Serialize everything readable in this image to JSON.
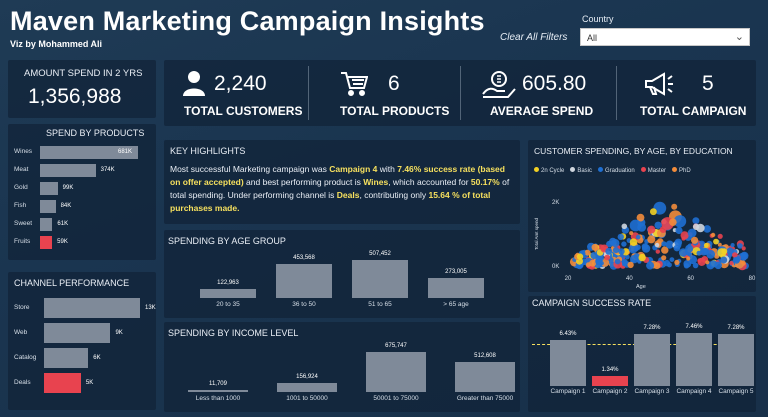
{
  "header": {
    "title": "Maven Marketing Campaign Insights",
    "byline": "Viz by Mohammed Ali",
    "clear_filters": "Clear All Filters",
    "country_label": "Country",
    "country_value": "All"
  },
  "amount": {
    "label": "AMOUNT SPEND IN 2 YRS",
    "value": "1,356,988"
  },
  "kpis": [
    {
      "value": "2,240",
      "label": "TOTAL CUSTOMERS",
      "icon": "person-icon"
    },
    {
      "value": "6",
      "label": "TOTAL PRODUCTS",
      "icon": "cart-icon"
    },
    {
      "value": "605.80",
      "label": "AVERAGE SPEND",
      "icon": "money-hand-icon"
    },
    {
      "value": "5",
      "label": "TOTAL CAMPAIGN",
      "icon": "megaphone-icon"
    }
  ],
  "spend_by_products": {
    "title": "SPEND BY PRODUCTS",
    "items": [
      {
        "name": "Wines",
        "label": "681K",
        "value": 681
      },
      {
        "name": "Meat",
        "label": "374K",
        "value": 374
      },
      {
        "name": "Gold",
        "label": "99K",
        "value": 99
      },
      {
        "name": "Fish",
        "label": "84K",
        "value": 84
      },
      {
        "name": "Sweet",
        "label": "61K",
        "value": 61
      },
      {
        "name": "Fruits",
        "label": "59K",
        "value": 59
      }
    ]
  },
  "channel_performance": {
    "title": "CHANNEL PERFORMANCE",
    "items": [
      {
        "name": "Store",
        "label": "13K",
        "value": 13
      },
      {
        "name": "Web",
        "label": "9K",
        "value": 9
      },
      {
        "name": "Catalog",
        "label": "6K",
        "value": 6
      },
      {
        "name": "Deals",
        "label": "5K",
        "value": 5
      }
    ]
  },
  "highlights": {
    "title": "KEY HIGHLIGHTS",
    "t1": "Most successful Marketing campaign was ",
    "b1": "Campaign 4",
    "t2": " with ",
    "b2": "7.46% success rate (based on offer accepted)",
    "t3": " and best performing product is ",
    "b3": "Wines",
    "t4": ", which accounted for ",
    "b4": "50.17%",
    "t5": " of total spending. Under performing channel is ",
    "b5": "Deals",
    "t6": ", contributing only ",
    "b6": "15.64 % of total purchases made."
  },
  "spending_by_age": {
    "title": "SPENDING BY AGE GROUP",
    "items": [
      {
        "group": "20 to 35",
        "label": "122,963",
        "value": 122963
      },
      {
        "group": "36 to 50",
        "label": "453,568",
        "value": 453568
      },
      {
        "group": "51 to 65",
        "label": "507,452",
        "value": 507452
      },
      {
        "group": "> 65 age",
        "label": "273,005",
        "value": 273005
      }
    ]
  },
  "spending_by_income": {
    "title": "SPENDING BY INCOME LEVEL",
    "items": [
      {
        "group": "Less than 1000",
        "label": "11,709",
        "value": 11709
      },
      {
        "group": "1001 to 50000",
        "label": "156,924",
        "value": 156924
      },
      {
        "group": "50001 to 75000",
        "label": "675,747",
        "value": 675747
      },
      {
        "group": "Greater than 75000",
        "label": "512,608",
        "value": 512608
      }
    ]
  },
  "chart_data": [
    {
      "type": "scatter",
      "title": "CUSTOMER SPENDING, BY AGE, BY EDUCATION",
      "xlabel": "Age",
      "ylabel": "Total Amt spend",
      "xlim": [
        20,
        80
      ],
      "xticks": [
        "20",
        "40",
        "60",
        "80"
      ],
      "yticks": [
        "2K",
        "0K"
      ],
      "legend": [
        {
          "name": "2n Cycle",
          "color": "#f2d024"
        },
        {
          "name": "Basic",
          "color": "#cfd6de"
        },
        {
          "name": "Graduation",
          "color": "#1f6fd1"
        },
        {
          "name": "Master",
          "color": "#e8434f"
        },
        {
          "name": "PhD",
          "color": "#f28c3b"
        }
      ]
    },
    {
      "type": "bar",
      "title": "CAMPAIGN SUCCESS RATE",
      "categories": [
        "Campaign 1",
        "Campaign 2",
        "Campaign 3",
        "Campaign 4",
        "Campaign 5"
      ],
      "values": [
        6.43,
        1.34,
        7.28,
        7.46,
        7.28
      ],
      "labels": [
        "6.43%",
        "1.34%",
        "7.28%",
        "7.46%",
        "7.28%"
      ],
      "highlight": 1,
      "ylim": [
        0,
        9
      ]
    }
  ]
}
